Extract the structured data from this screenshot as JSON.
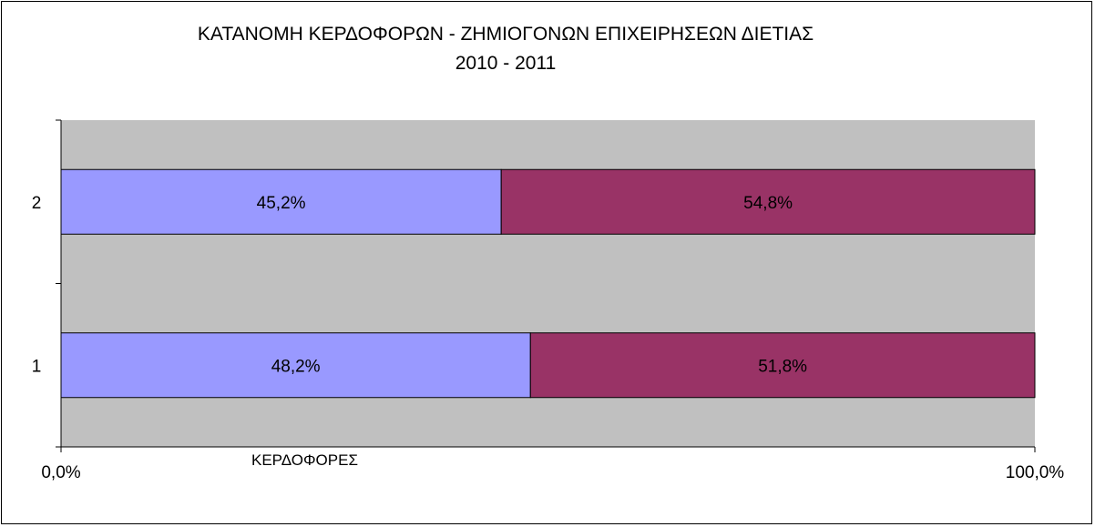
{
  "chart_data": {
    "type": "bar",
    "stacked": "percent",
    "orientation": "horizontal",
    "title": [
      "ΚΑΤΑΝΟΜΗ ΚΕΡΔΟΦΟΡΩΝ - ΖΗΜΙΟΓΟΝΩΝ ΕΠΙΧΕΙΡΗΣΕΩΝ ΔΙΕΤΙΑΣ",
      "2010 - 2011"
    ],
    "categories": [
      "1",
      "2"
    ],
    "series": [
      {
        "name": "ΚΕΡΔΟΦΟΡΕΣ",
        "values": [
          48.2,
          45.2
        ],
        "labels": [
          "48,2%",
          "45,2%"
        ],
        "color": "#9999ff"
      },
      {
        "values": [
          51.8,
          54.8
        ],
        "labels": [
          "51,8%",
          "54,8%"
        ],
        "color": "#993366"
      }
    ],
    "x_ticks": [
      "0,0%",
      "100,0%"
    ],
    "xlim": [
      0,
      100
    ],
    "plot_background": "#c0c0c0",
    "grid": false,
    "legend_text": "ΚΕΡΔΟΦΟΡΕΣ"
  }
}
